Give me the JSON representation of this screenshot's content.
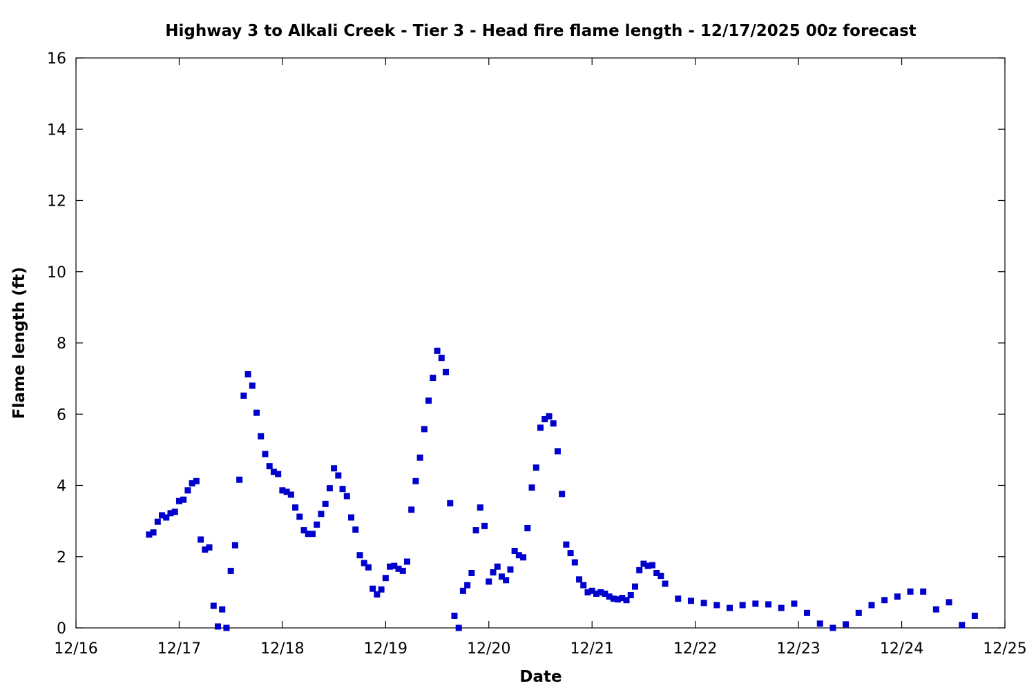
{
  "chart_data": {
    "type": "scatter",
    "title": "Highway 3 to Alkali Creek - Tier 3 - Head fire flame length - 12/17/2025 00z forecast",
    "xlabel": "Date",
    "ylabel": "Flame length (ft)",
    "xlim": [
      "12/16",
      "12/25"
    ],
    "ylim": [
      0,
      16
    ],
    "x_tick_labels": [
      "12/16",
      "12/17",
      "12/18",
      "12/19",
      "12/20",
      "12/21",
      "12/22",
      "12/23",
      "12/24",
      "12/25"
    ],
    "y_ticks": [
      0,
      2,
      4,
      6,
      8,
      10,
      12,
      14,
      16
    ],
    "grid": false,
    "legend": "none",
    "marker_color": "#0000cc",
    "x_unit": "date (12/16 + days)",
    "series": [
      {
        "points": [
          [
            "12/16 17:00",
            2.62
          ],
          [
            "12/16 18:00",
            2.68
          ],
          [
            "12/16 19:00",
            2.98
          ],
          [
            "12/16 20:00",
            3.16
          ],
          [
            "12/16 21:00",
            3.1
          ],
          [
            "12/16 22:00",
            3.22
          ],
          [
            "12/16 23:00",
            3.26
          ],
          [
            "12/17 00:00",
            3.56
          ],
          [
            "12/17 01:00",
            3.6
          ],
          [
            "12/17 02:00",
            3.86
          ],
          [
            "12/17 03:00",
            4.06
          ],
          [
            "12/17 04:00",
            4.12
          ],
          [
            "12/17 05:00",
            2.48
          ],
          [
            "12/17 06:00",
            2.2
          ],
          [
            "12/17 07:00",
            2.26
          ],
          [
            "12/17 08:00",
            0.62
          ],
          [
            "12/17 09:00",
            0.04
          ],
          [
            "12/17 10:00",
            0.52
          ],
          [
            "12/17 11:00",
            0.0
          ],
          [
            "12/17 12:00",
            1.6
          ],
          [
            "12/17 13:00",
            2.32
          ],
          [
            "12/17 14:00",
            4.16
          ],
          [
            "12/17 15:00",
            6.52
          ],
          [
            "12/17 16:00",
            7.12
          ],
          [
            "12/17 17:00",
            6.8
          ],
          [
            "12/17 18:00",
            6.04
          ],
          [
            "12/17 19:00",
            5.38
          ],
          [
            "12/17 20:00",
            4.88
          ],
          [
            "12/17 21:00",
            4.54
          ],
          [
            "12/17 22:00",
            4.38
          ],
          [
            "12/17 23:00",
            4.32
          ],
          [
            "12/18 00:00",
            3.86
          ],
          [
            "12/18 01:00",
            3.82
          ],
          [
            "12/18 02:00",
            3.74
          ],
          [
            "12/18 03:00",
            3.38
          ],
          [
            "12/18 04:00",
            3.12
          ],
          [
            "12/18 05:00",
            2.74
          ],
          [
            "12/18 06:00",
            2.64
          ],
          [
            "12/18 07:00",
            2.64
          ],
          [
            "12/18 08:00",
            2.9
          ],
          [
            "12/18 09:00",
            3.2
          ],
          [
            "12/18 10:00",
            3.48
          ],
          [
            "12/18 11:00",
            3.92
          ],
          [
            "12/18 12:00",
            4.48
          ],
          [
            "12/18 13:00",
            4.28
          ],
          [
            "12/18 14:00",
            3.9
          ],
          [
            "12/18 15:00",
            3.7
          ],
          [
            "12/18 16:00",
            3.1
          ],
          [
            "12/18 17:00",
            2.76
          ],
          [
            "12/18 18:00",
            2.04
          ],
          [
            "12/18 19:00",
            1.82
          ],
          [
            "12/18 20:00",
            1.7
          ],
          [
            "12/18 21:00",
            1.1
          ],
          [
            "12/18 22:00",
            0.94
          ],
          [
            "12/18 23:00",
            1.08
          ],
          [
            "12/19 00:00",
            1.4
          ],
          [
            "12/19 01:00",
            1.72
          ],
          [
            "12/19 02:00",
            1.74
          ],
          [
            "12/19 03:00",
            1.66
          ],
          [
            "12/19 04:00",
            1.6
          ],
          [
            "12/19 05:00",
            1.86
          ],
          [
            "12/19 06:00",
            3.32
          ],
          [
            "12/19 07:00",
            4.12
          ],
          [
            "12/19 08:00",
            4.78
          ],
          [
            "12/19 09:00",
            5.58
          ],
          [
            "12/19 10:00",
            6.38
          ],
          [
            "12/19 11:00",
            7.02
          ],
          [
            "12/19 12:00",
            7.78
          ],
          [
            "12/19 13:00",
            7.58
          ],
          [
            "12/19 14:00",
            7.18
          ],
          [
            "12/19 15:00",
            3.5
          ],
          [
            "12/19 16:00",
            0.34
          ],
          [
            "12/19 17:00",
            0.0
          ],
          [
            "12/19 18:00",
            1.04
          ],
          [
            "12/19 19:00",
            1.2
          ],
          [
            "12/19 20:00",
            1.54
          ],
          [
            "12/19 21:00",
            2.74
          ],
          [
            "12/19 22:00",
            3.38
          ],
          [
            "12/19 23:00",
            2.86
          ],
          [
            "12/20 00:00",
            1.3
          ],
          [
            "12/20 01:00",
            1.56
          ],
          [
            "12/20 02:00",
            1.72
          ],
          [
            "12/20 03:00",
            1.44
          ],
          [
            "12/20 04:00",
            1.34
          ],
          [
            "12/20 05:00",
            1.64
          ],
          [
            "12/20 06:00",
            2.16
          ],
          [
            "12/20 07:00",
            2.04
          ],
          [
            "12/20 08:00",
            1.98
          ],
          [
            "12/20 09:00",
            2.8
          ],
          [
            "12/20 10:00",
            3.94
          ],
          [
            "12/20 11:00",
            4.5
          ],
          [
            "12/20 12:00",
            5.62
          ],
          [
            "12/20 13:00",
            5.86
          ],
          [
            "12/20 14:00",
            5.94
          ],
          [
            "12/20 15:00",
            5.74
          ],
          [
            "12/20 16:00",
            4.96
          ],
          [
            "12/20 17:00",
            3.76
          ],
          [
            "12/20 18:00",
            2.34
          ],
          [
            "12/20 19:00",
            2.1
          ],
          [
            "12/20 20:00",
            1.84
          ],
          [
            "12/20 21:00",
            1.36
          ],
          [
            "12/20 22:00",
            1.2
          ],
          [
            "12/20 23:00",
            1.0
          ],
          [
            "12/21 00:00",
            1.04
          ],
          [
            "12/21 01:00",
            0.96
          ],
          [
            "12/21 02:00",
            1.0
          ],
          [
            "12/21 03:00",
            0.96
          ],
          [
            "12/21 04:00",
            0.88
          ],
          [
            "12/21 05:00",
            0.82
          ],
          [
            "12/21 06:00",
            0.8
          ],
          [
            "12/21 07:00",
            0.84
          ],
          [
            "12/21 08:00",
            0.78
          ],
          [
            "12/21 09:00",
            0.92
          ],
          [
            "12/21 10:00",
            1.16
          ],
          [
            "12/21 11:00",
            1.62
          ],
          [
            "12/21 12:00",
            1.8
          ],
          [
            "12/21 13:00",
            1.74
          ],
          [
            "12/21 14:00",
            1.76
          ],
          [
            "12/21 15:00",
            1.54
          ],
          [
            "12/21 16:00",
            1.46
          ],
          [
            "12/21 17:00",
            1.24
          ],
          [
            "12/21 20:00",
            0.82
          ],
          [
            "12/21 23:00",
            0.76
          ],
          [
            "12/22 02:00",
            0.7
          ],
          [
            "12/22 05:00",
            0.64
          ],
          [
            "12/22 08:00",
            0.56
          ],
          [
            "12/22 11:00",
            0.64
          ],
          [
            "12/22 14:00",
            0.68
          ],
          [
            "12/22 17:00",
            0.66
          ],
          [
            "12/22 20:00",
            0.56
          ],
          [
            "12/22 23:00",
            0.68
          ],
          [
            "12/23 02:00",
            0.42
          ],
          [
            "12/23 05:00",
            0.12
          ],
          [
            "12/23 08:00",
            0.0
          ],
          [
            "12/23 11:00",
            0.1
          ],
          [
            "12/23 14:00",
            0.42
          ],
          [
            "12/23 17:00",
            0.64
          ],
          [
            "12/23 20:00",
            0.78
          ],
          [
            "12/23 23:00",
            0.88
          ],
          [
            "12/24 02:00",
            1.02
          ],
          [
            "12/24 05:00",
            1.02
          ],
          [
            "12/24 08:00",
            0.52
          ],
          [
            "12/24 11:00",
            0.72
          ],
          [
            "12/24 14:00",
            0.08
          ],
          [
            "12/24 17:00",
            0.34
          ]
        ]
      }
    ]
  }
}
